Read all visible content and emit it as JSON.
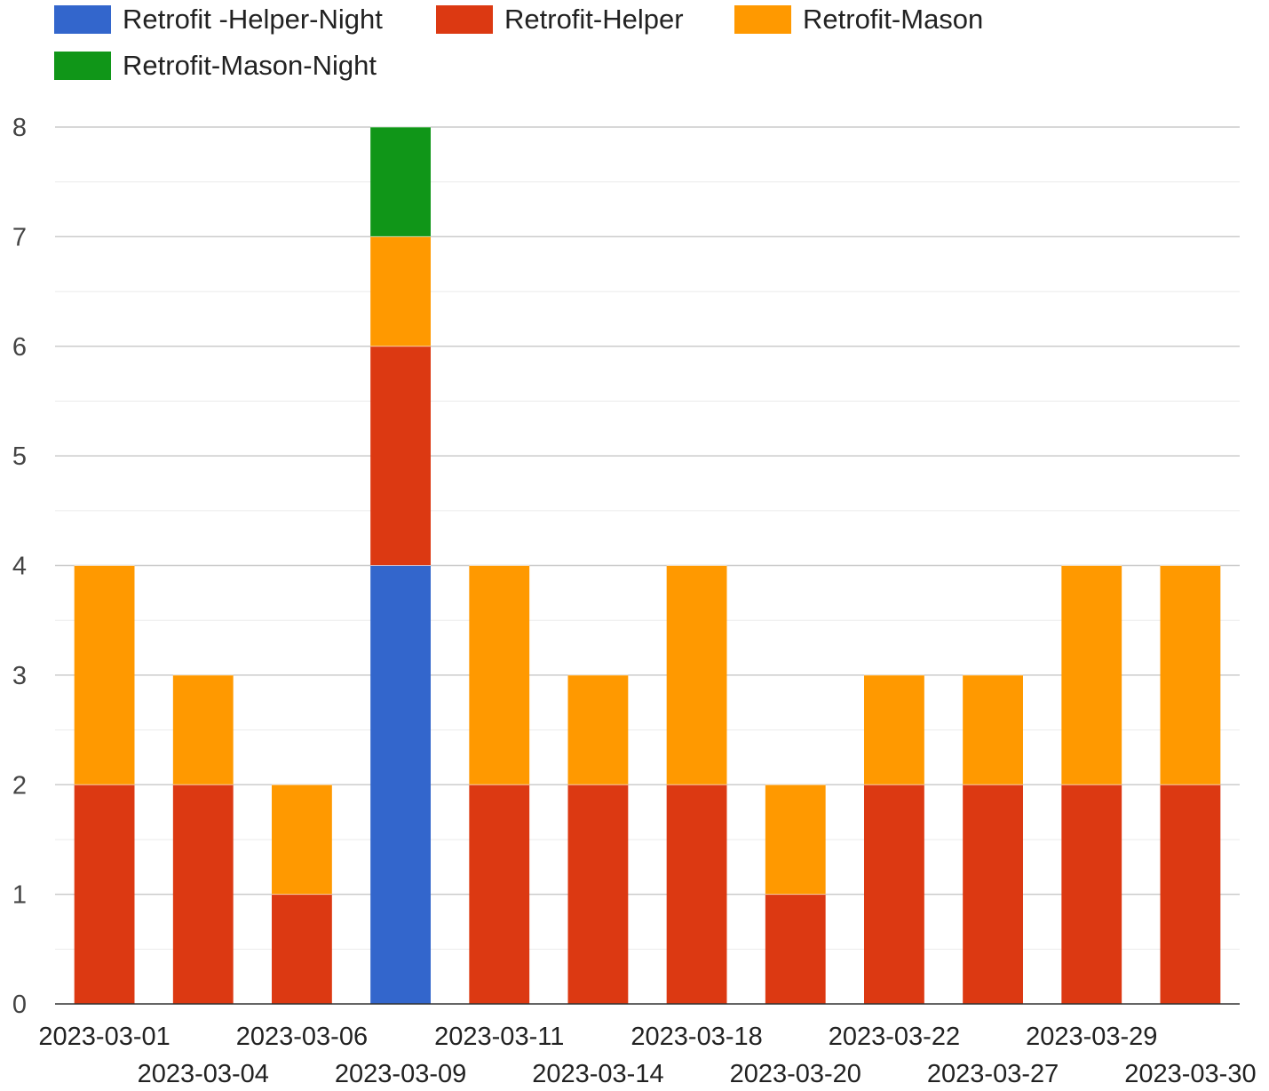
{
  "chart_data": {
    "type": "bar",
    "stacked": true,
    "title": "",
    "xlabel": "",
    "ylabel": "",
    "ylim": [
      0,
      8
    ],
    "yticks": [
      0,
      1,
      2,
      3,
      4,
      5,
      6,
      7,
      8
    ],
    "grid": true,
    "legend_position": "top",
    "categories": [
      "2023-03-01",
      "2023-03-04",
      "2023-03-06",
      "2023-03-09",
      "2023-03-11",
      "2023-03-14",
      "2023-03-18",
      "2023-03-20",
      "2023-03-22",
      "2023-03-27",
      "2023-03-29",
      "2023-03-30"
    ],
    "series": [
      {
        "name": "Retrofit -Helper-Night",
        "color": "#3366cc",
        "values": [
          0,
          0,
          0,
          4,
          0,
          0,
          0,
          0,
          0,
          0,
          0,
          0
        ]
      },
      {
        "name": "Retrofit-Helper",
        "color": "#dc3912",
        "values": [
          2,
          2,
          1,
          2,
          2,
          2,
          2,
          1,
          2,
          2,
          2,
          2
        ]
      },
      {
        "name": "Retrofit-Mason",
        "color": "#ff9900",
        "values": [
          2,
          1,
          1,
          1,
          2,
          1,
          2,
          1,
          1,
          1,
          2,
          2
        ]
      },
      {
        "name": "Retrofit-Mason-Night",
        "color": "#109618",
        "values": [
          0,
          0,
          0,
          1,
          0,
          0,
          0,
          0,
          0,
          0,
          0,
          0
        ]
      }
    ]
  }
}
